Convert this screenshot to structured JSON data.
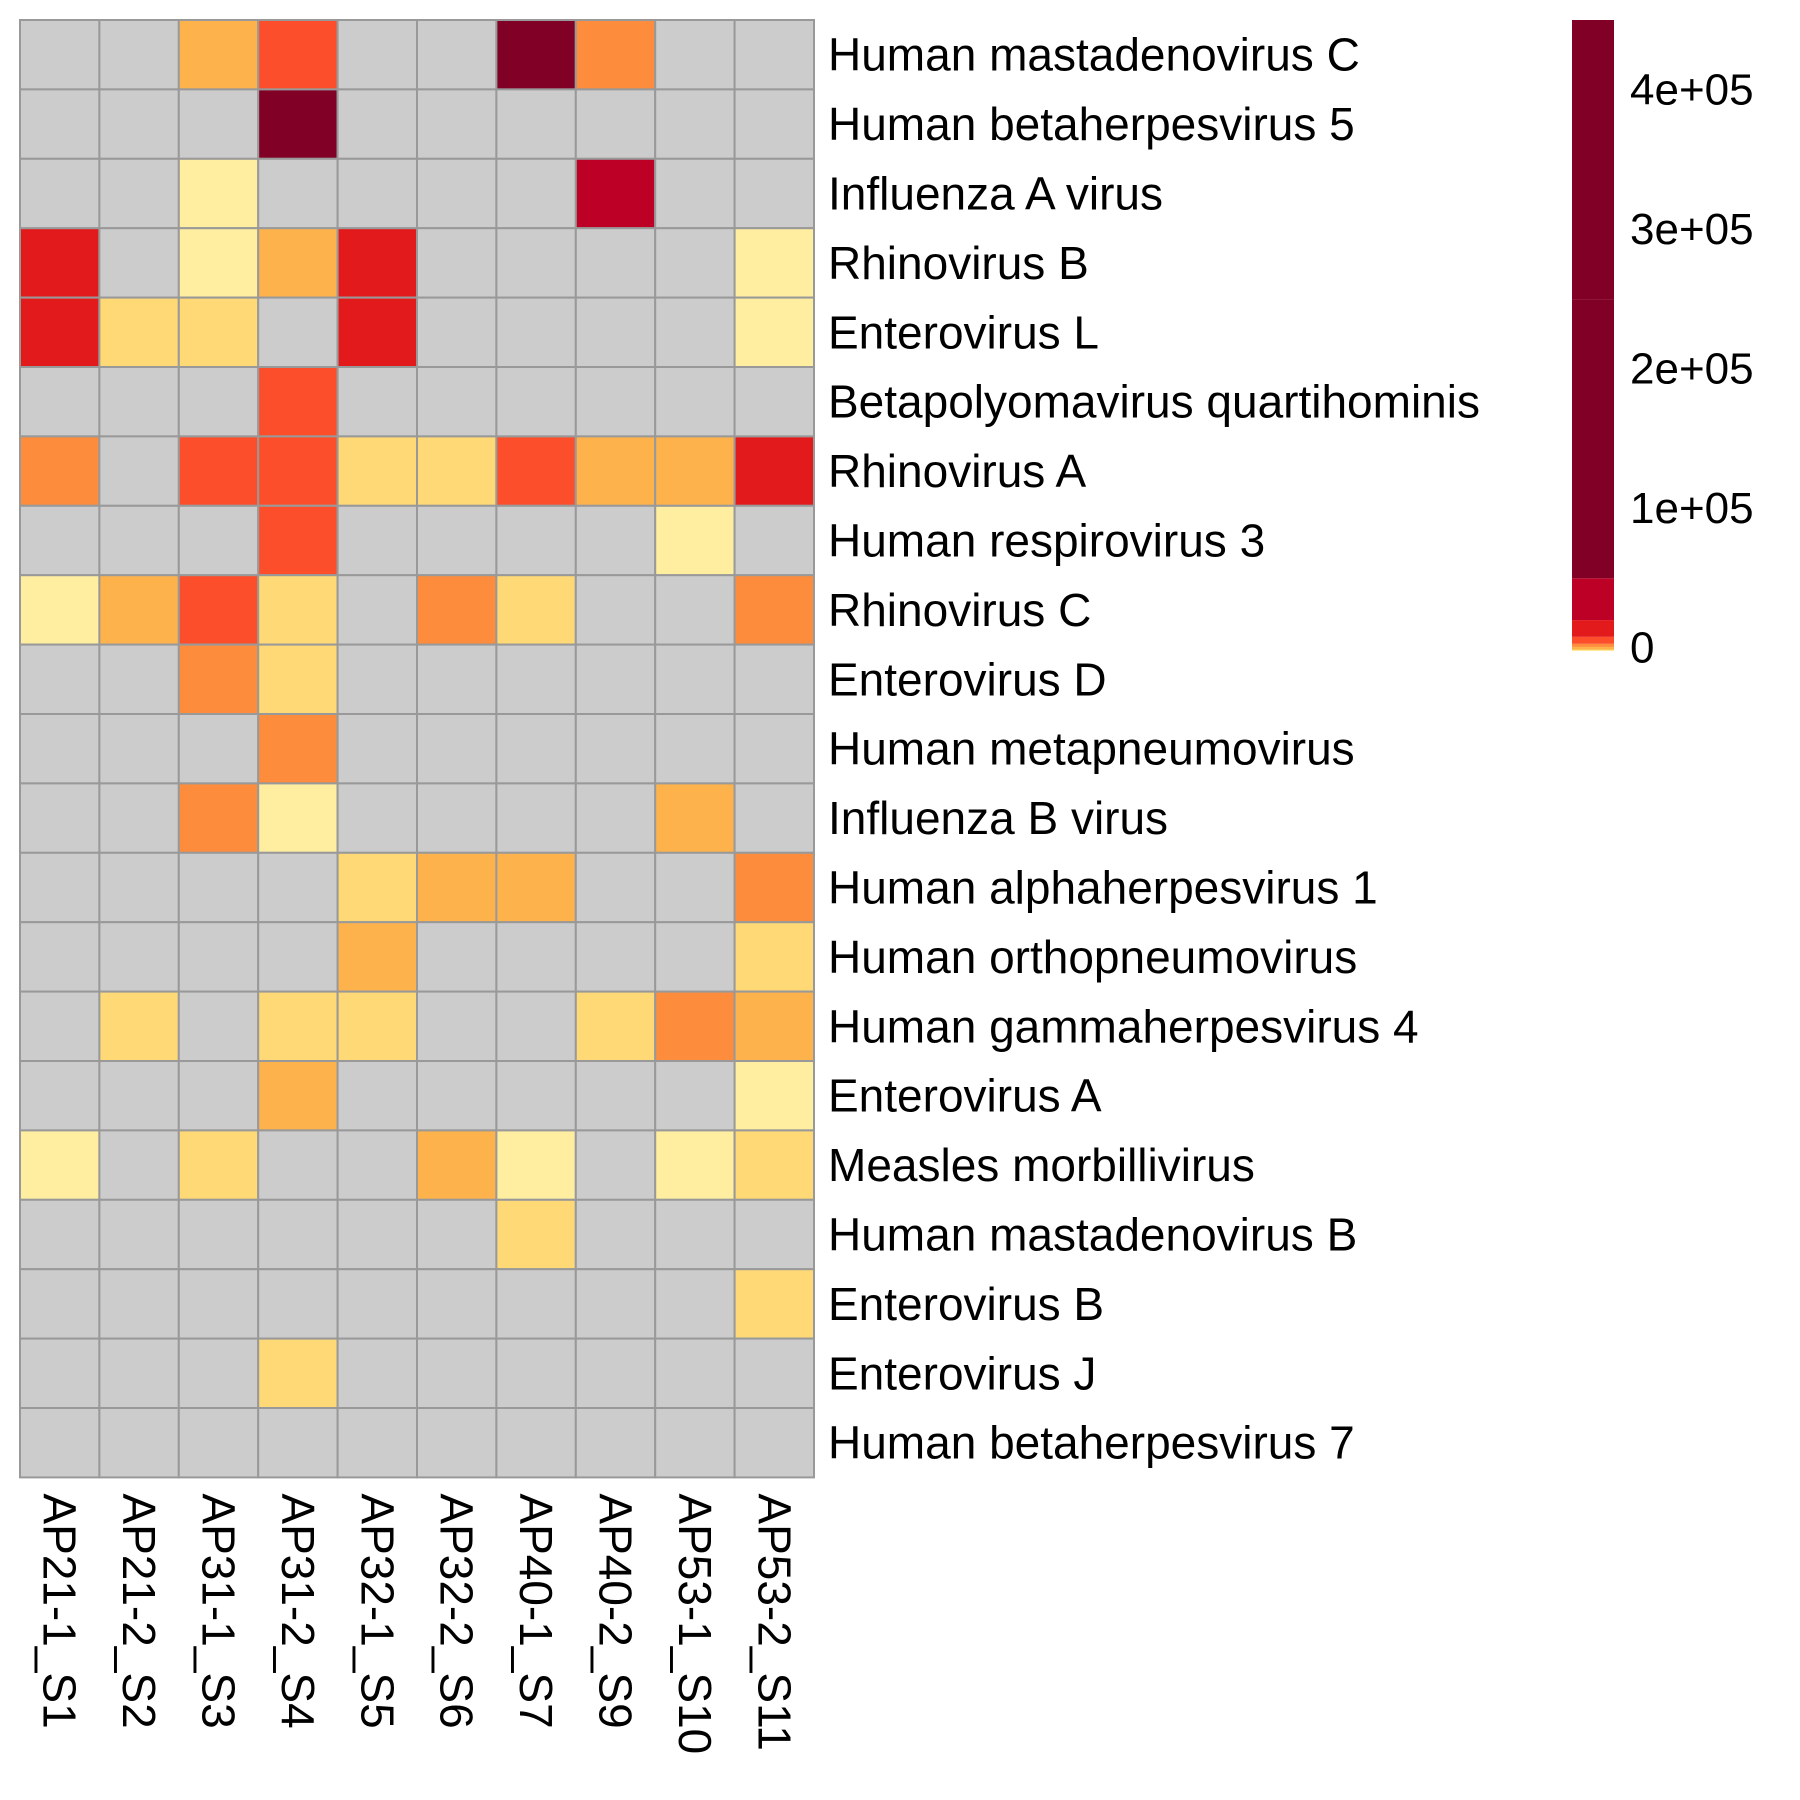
{
  "chart_data": {
    "type": "heatmap",
    "title": "",
    "xlabel": "",
    "ylabel": "",
    "columns": [
      "AP21-1_S1",
      "AP21-2_S2",
      "AP31-1_S3",
      "AP31-2_S4",
      "AP32-1_S5",
      "AP32-2_S6",
      "AP40-1_S7",
      "AP40-2_S9",
      "AP53-1_S10",
      "AP53-2_S11"
    ],
    "rows": [
      "Human mastadenovirus C",
      "Human betaherpesvirus 5",
      "Influenza A virus",
      "Rhinovirus B",
      "Enterovirus L",
      "Betapolyomavirus quartihominis",
      "Rhinovirus A",
      "Human respirovirus 3",
      "Rhinovirus C",
      "Enterovirus D",
      "Human metapneumovirus",
      "Influenza B virus",
      "Human alphaherpesvirus 1",
      "Human orthopneumovirus",
      "Human gammaherpesvirus 4",
      "Enterovirus A",
      "Measles morbillivirus",
      "Human mastadenovirus B",
      "Enterovirus B",
      "Enterovirus J",
      "Human betaherpesvirus 7"
    ],
    "values": [
      [
        null,
        null,
        500,
        5000,
        null,
        null,
        200000,
        2000,
        null,
        null
      ],
      [
        null,
        null,
        null,
        200000,
        null,
        null,
        null,
        null,
        null,
        null
      ],
      [
        null,
        null,
        10,
        null,
        null,
        null,
        null,
        40000,
        null,
        null
      ],
      [
        15000,
        null,
        10,
        800,
        15000,
        null,
        null,
        null,
        null,
        10
      ],
      [
        15000,
        200,
        300,
        null,
        15000,
        null,
        null,
        null,
        null,
        10
      ],
      [
        null,
        null,
        null,
        5000,
        null,
        null,
        null,
        null,
        null,
        null
      ],
      [
        2000,
        null,
        5000,
        5000,
        200,
        200,
        5000,
        800,
        800,
        15000
      ],
      [
        null,
        null,
        null,
        5000,
        null,
        null,
        null,
        null,
        10,
        null
      ],
      [
        10,
        800,
        6000,
        200,
        null,
        2000,
        200,
        null,
        null,
        2000
      ],
      [
        null,
        null,
        2000,
        200,
        null,
        null,
        null,
        null,
        null,
        null
      ],
      [
        null,
        null,
        null,
        2000,
        null,
        null,
        null,
        null,
        null,
        null
      ],
      [
        null,
        null,
        2000,
        10,
        null,
        null,
        null,
        null,
        800,
        null
      ],
      [
        null,
        null,
        null,
        null,
        200,
        800,
        800,
        null,
        null,
        2000
      ],
      [
        null,
        null,
        null,
        null,
        800,
        null,
        null,
        null,
        null,
        300
      ],
      [
        null,
        200,
        null,
        200,
        200,
        null,
        null,
        200,
        2000,
        800
      ],
      [
        null,
        null,
        null,
        800,
        null,
        null,
        null,
        null,
        null,
        10
      ],
      [
        10,
        null,
        200,
        null,
        null,
        800,
        10,
        null,
        10,
        200
      ],
      [
        null,
        null,
        null,
        null,
        null,
        null,
        300,
        null,
        null,
        null
      ],
      [
        null,
        null,
        null,
        null,
        null,
        null,
        null,
        null,
        null,
        300
      ],
      [
        null,
        null,
        null,
        200,
        null,
        null,
        null,
        null,
        null,
        null
      ],
      [
        null,
        null,
        null,
        null,
        null,
        null,
        null,
        null,
        null,
        null
      ]
    ],
    "missing_color": "#cccccc",
    "color_scale": {
      "breaks": [
        0,
        5,
        100,
        500,
        1000,
        3000,
        8000,
        20000,
        50000,
        250000,
        450000
      ],
      "colors": [
        "#ffffcc",
        "#ffeda0",
        "#fed976",
        "#feb24c",
        "#fd8d3c",
        "#fc4e2a",
        "#e31a1c",
        "#bd0026",
        "#800026",
        "#800026"
      ]
    },
    "legend": {
      "position": "right",
      "range": [
        0,
        450000
      ],
      "ticks": [
        0,
        100000,
        200000,
        300000,
        400000
      ],
      "tick_labels": [
        "0",
        "1e+05",
        "2e+05",
        "3e+05",
        "4e+05"
      ]
    }
  }
}
